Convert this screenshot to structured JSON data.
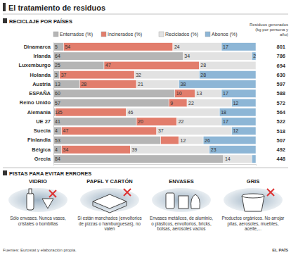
{
  "title": "El tratamiento de residuos",
  "chart_data": {
    "type": "bar",
    "orientation": "horizontal",
    "stacked": true,
    "data_labels": true,
    "tick_labels": "y",
    "title": "RECICLAJE POR PAÍSES",
    "categories": [
      "Dinamarca",
      "Irlanda",
      "Luxemburgo",
      "Holanda",
      "Austria",
      "ESPAÑA",
      "Reino Unido",
      "Alemania",
      "UE 27",
      "Suecia",
      "Finlandia",
      "Bélgica",
      "Grecia"
    ],
    "xlim": [
      0,
      100
    ],
    "series": [
      {
        "name": "Enterrados (%)",
        "color": "#b5b5b5",
        "values": [
          5,
          64,
          25,
          3,
          13,
          60,
          57,
          1,
          41,
          4,
          53,
          4,
          84
        ],
        "value_labels": [
          "5",
          "64",
          "25",
          "3",
          "13",
          "60",
          "57",
          "1",
          "41",
          "4",
          "53",
          "4",
          "84"
        ]
      },
      {
        "name": "Incinerados (%)",
        "color": "#e27d6c",
        "values": [
          54,
          0,
          47,
          37,
          28,
          10,
          9,
          35,
          20,
          47,
          9,
          34,
          0
        ],
        "value_labels": [
          "54",
          null,
          "47",
          "37",
          "28",
          "10",
          "9",
          "35",
          "20",
          "47",
          null,
          "34",
          null
        ]
      },
      {
        "name": "Reciclados (%)",
        "color": "#e2e2e2",
        "values": [
          24,
          34,
          28,
          32,
          21,
          13,
          22,
          46,
          22,
          37,
          12,
          39,
          14
        ],
        "value_labels": [
          "24",
          "34",
          "28",
          "32",
          "21",
          "13",
          "22",
          "46",
          "22",
          "37",
          "12",
          "39",
          "14"
        ]
      },
      {
        "name": "Abonos (%)",
        "color": "#8db6d6",
        "values": [
          17,
          2,
          0,
          28,
          38,
          17,
          12,
          18,
          17,
          12,
          26,
          23,
          2
        ],
        "value_labels": [
          "17",
          "2",
          null,
          "28",
          "38",
          "17",
          "12",
          "18",
          "17",
          "12",
          "26",
          "23",
          null
        ]
      }
    ],
    "totals": {
      "name": "Residuos generados (kg por persona y año)",
      "values": [
        801,
        786,
        694,
        630,
        597,
        588,
        572,
        564,
        522,
        518,
        507,
        492,
        448
      ]
    }
  },
  "tips": {
    "title": "PISTAS PARA EVITAR ERRORES",
    "items": [
      {
        "heading": "VIDRIO",
        "text": "Sólo envases. Nunca vasos, cristales o bombillas"
      },
      {
        "heading": "PAPEL Y CARTÓN",
        "text": "Si están manchados (envoltorios de pizzas o hamburguesas), no valen"
      },
      {
        "heading": "ENVASES",
        "text": "Envases metálicos, de aluminio, o plásticos, envoltorios, bricks, bolsas, aerosoles vacíos"
      },
      {
        "heading": "GRIS",
        "text": "Productos orgánicos. No arrojar pilas, aerosoles, muebles, aceite,..."
      }
    ]
  },
  "source": "Fuentes: Eurostat y elaboración propia.",
  "publisher": "EL PAÍS"
}
